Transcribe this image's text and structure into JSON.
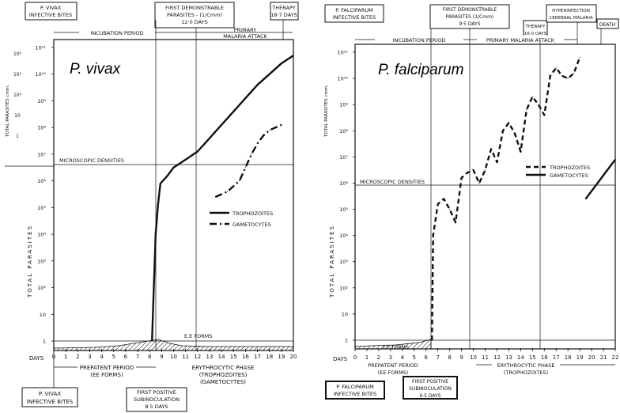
{
  "charts": [
    {
      "title": "P. vivax",
      "top_left_box": [
        "P. VIVAX",
        "INFECTIVE BITES"
      ],
      "top_mid_box": [
        "FIRST DEMONSTRABLE",
        "PARASITES - (1/Cmm)",
        "12·0 DAYS"
      ],
      "top_right_box": [
        "THERAPY",
        "18·7 DAYS"
      ],
      "incubation_label": "INCUBATION PERIOD",
      "attack_label": [
        "PRIMARY",
        "MALARIA ATTACK"
      ],
      "left_axis_label": "TOTAL PARASITES",
      "left_axis_label2": "TOTAL PARASITES cmm.",
      "microscopic_label": "MICROSCOPIC DENSITIES",
      "ee_label": "E.E FORMS",
      "days_label": "DAYS",
      "legend": {
        "troph": "TROPHOZOITES",
        "gam": "GAMETOCYTES"
      },
      "prepatent_label": [
        "PREPATENT PERIOD",
        "(EE FORMS)"
      ],
      "phase_label": [
        "ERYTHROCYTIC PHASE",
        "(TROPHOZOITES)",
        "(GAMETOCYTES)"
      ],
      "bottom_left_box": [
        "P. VIVAX",
        "INFECTIVE BITES"
      ],
      "bottom_mid_box": [
        "FIRST POSITIVE",
        "SUBINOCULATION",
        "8·5 DAYS"
      ]
    },
    {
      "title": "P. falciparum",
      "top_left_box": [
        "P. FALCIPARUM",
        "INFECTIVE BITES"
      ],
      "top_mid_box": [
        "FIRST DEMONSTRABLE",
        "PARASITES (1/Cmm)",
        "9·5 DAYS"
      ],
      "therapy_box": [
        "THERAPY",
        "16·0 DAYS"
      ],
      "hyper_box": [
        "HYPERINFECTION",
        "CEREBRAL MALARIA"
      ],
      "death_box": "DEATH",
      "incubation_label": "INCUBATION PERIOD",
      "attack_label": "PRIMARY MALARIA ATTACK",
      "left_axis_label": "TOTAL PARASITES",
      "left_axis_label2": "TOTAL PARASITES cmm.",
      "microscopic_label": "MICROSCOPIC DENSITIES",
      "ee_label": "E.E FORMS",
      "days_label": "DAYS",
      "legend": {
        "troph": "TROPHOZOITES",
        "gam": "GAMETOCYTES"
      },
      "prepatent_label": [
        "PREPATENT PERIOD",
        "(EE FORMS)"
      ],
      "phase_label": [
        "ERYTHROCYTIC PHASE",
        "(TROPHOZOITES)"
      ],
      "bottom_left_box": [
        "P. FALCIPARUM",
        "INFECTIVE BITES"
      ],
      "bottom_mid_box": [
        "FIRST POSITIVE",
        "SUBINOCULATION",
        "6·5 DAYS"
      ]
    }
  ],
  "chart_data": [
    {
      "type": "line",
      "title": "P. vivax",
      "xlabel": "DAYS",
      "ylabel": "TOTAL PARASITES",
      "y_scale": "log",
      "xlim": [
        0,
        20
      ],
      "x_ticks": [
        "0",
        "1",
        "2",
        "3",
        "4",
        "5",
        "6",
        "7",
        "8",
        "9",
        "10",
        "11",
        "12",
        "13",
        "14",
        "15",
        "16",
        "17",
        "18",
        "19",
        "20"
      ],
      "y_ticks": [
        "1",
        "10",
        "10²",
        "10³",
        "10⁴",
        "10⁵",
        "10⁶",
        "10⁷",
        "10⁸",
        "10⁹",
        "10¹⁰",
        "10¹¹"
      ],
      "y_ticks_right": [
        "10⁴",
        "10³",
        "10²",
        "10",
        "1"
      ],
      "grid": false,
      "series": [
        {
          "name": "TROPHOZOITES",
          "style": "solid",
          "x": [
            8.2,
            8.5,
            8.7,
            8.9,
            9.5,
            10,
            11,
            12,
            13,
            14,
            15,
            16,
            17,
            18,
            19,
            20
          ],
          "y_exp": [
            0,
            4,
            5.1,
            5.9,
            6.2,
            6.5,
            6.8,
            7.1,
            7.6,
            8.1,
            8.6,
            9.1,
            9.6,
            10.0,
            10.4,
            10.7
          ]
        },
        {
          "name": "GAMETOCYTES",
          "style": "dash-dot",
          "x": [
            13.5,
            14.5,
            15.5,
            16,
            16.5,
            17,
            17.5,
            18,
            18.5,
            19
          ],
          "y_exp": [
            5.4,
            5.6,
            6.0,
            6.5,
            7.0,
            7.4,
            7.7,
            7.9,
            8.0,
            8.1
          ]
        }
      ],
      "annotations": [
        "MICROSCOPIC DENSITIES",
        "E.E FORMS"
      ]
    },
    {
      "type": "line",
      "title": "P. falciparum",
      "xlabel": "DAYS",
      "ylabel": "TOTAL PARASITES",
      "y_scale": "log",
      "xlim": [
        0,
        22
      ],
      "x_ticks": [
        "0",
        "1",
        "2",
        "3",
        "4",
        "5",
        "6",
        "7",
        "8",
        "9",
        "10",
        "11",
        "12",
        "13",
        "14",
        "15",
        "16",
        "17",
        "18",
        "19",
        "20",
        "21",
        "22"
      ],
      "y_ticks": [
        "1",
        "10",
        "10²",
        "10³",
        "10⁴",
        "10⁵",
        "10⁶",
        "10⁷",
        "10⁸",
        "10⁹",
        "10¹⁰",
        "10¹¹"
      ],
      "grid": false,
      "series": [
        {
          "name": "TROPHOZOITES",
          "style": "dashed",
          "x": [
            6.5,
            6.6,
            7,
            7.5,
            8,
            8.5,
            9,
            9.5,
            10,
            10.5,
            11,
            11.5,
            12,
            12.5,
            13,
            13.5,
            14,
            14.5,
            15,
            15.5,
            16,
            16.5,
            17,
            17.5,
            18,
            18.5,
            19
          ],
          "y_exp": [
            0,
            4,
            5.2,
            5.4,
            5.0,
            4.5,
            6.2,
            6.4,
            6.5,
            6.0,
            6.5,
            7.3,
            6.8,
            8.0,
            8.3,
            7.9,
            7.2,
            8.8,
            9.3,
            9.0,
            8.6,
            10.1,
            10.4,
            10.1,
            10.0,
            10.2,
            10.8
          ]
        },
        {
          "name": "GAMETOCYTES",
          "style": "solid",
          "x": [
            19.5,
            20,
            20.5,
            21,
            21.5,
            22
          ],
          "y_exp": [
            5.4,
            5.7,
            6.0,
            6.3,
            6.6,
            6.9
          ]
        }
      ],
      "annotations": [
        "MICROSCOPIC DENSITIES",
        "E.E FORMS"
      ]
    }
  ]
}
